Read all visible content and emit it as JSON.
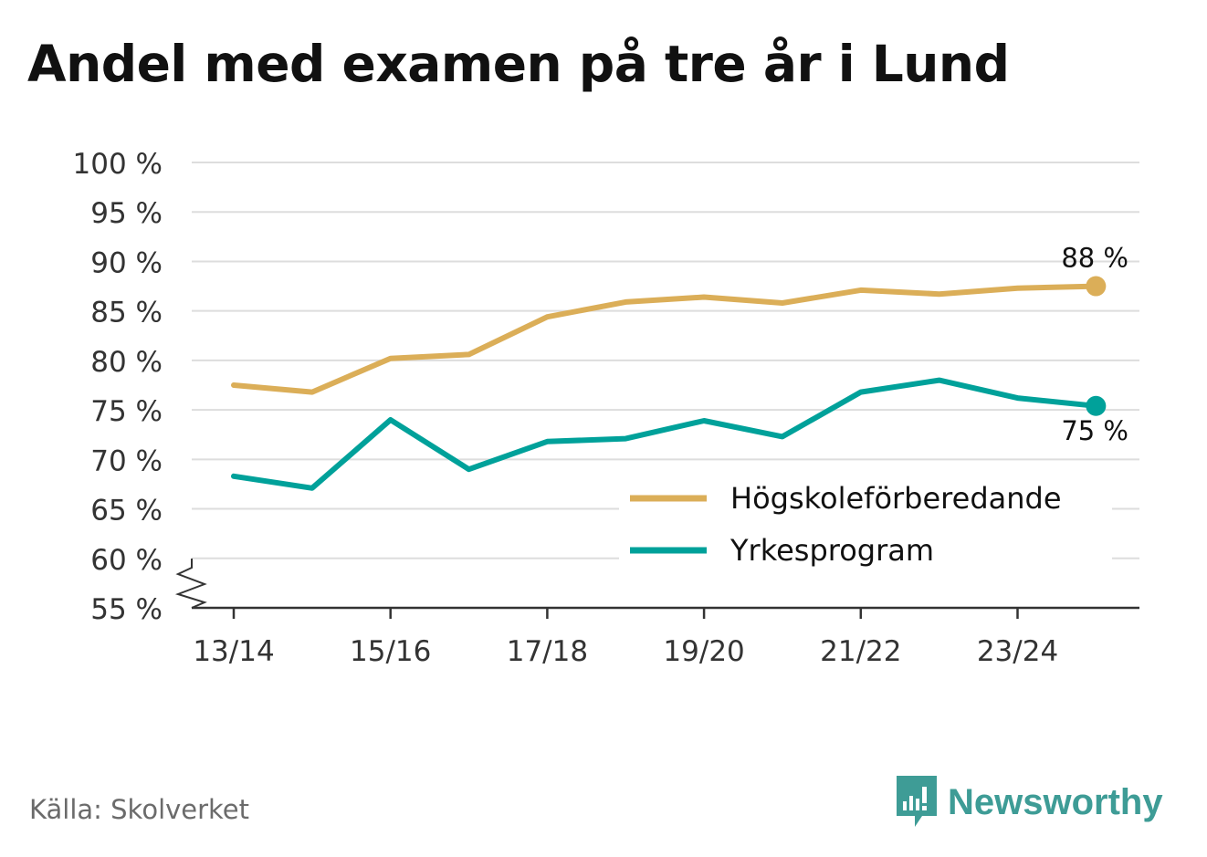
{
  "title": "Andel med examen på tre år i Lund",
  "source": "Källa: Skolverket",
  "brand": "Newsworthy",
  "colors": {
    "series1": "#DBAE58",
    "series2": "#00A19A",
    "grid": "#DDDDDD",
    "axis": "#333333",
    "brand": "#3E9C96"
  },
  "chart_data": {
    "type": "line",
    "title": "Andel med examen på tre år i Lund",
    "xlabel": "",
    "ylabel": "",
    "x": [
      "13/14",
      "14/15",
      "15/16",
      "16/17",
      "17/18",
      "18/19",
      "19/20",
      "20/21",
      "21/22",
      "22/23",
      "23/24",
      "24/25"
    ],
    "xtick_labels": [
      "13/14",
      "15/16",
      "17/18",
      "19/20",
      "21/22",
      "23/24"
    ],
    "ylim": [
      55,
      100
    ],
    "yticks": [
      55,
      60,
      65,
      70,
      75,
      80,
      85,
      90,
      95,
      100
    ],
    "ytick_labels": [
      "55 %",
      "60 %",
      "65 %",
      "70 %",
      "75 %",
      "80 %",
      "85 %",
      "90 %",
      "95 %",
      "100 %"
    ],
    "axis_break": true,
    "legend_position": "lower-right",
    "series": [
      {
        "name": "Högskoleförberedande",
        "values": [
          77.5,
          76.8,
          80.2,
          80.6,
          84.4,
          85.9,
          86.4,
          85.8,
          87.1,
          86.7,
          87.3,
          87.5
        ],
        "end_label": "88 %"
      },
      {
        "name": "Yrkesprogram",
        "values": [
          68.3,
          67.1,
          74.0,
          69.0,
          71.8,
          72.1,
          73.9,
          72.3,
          76.8,
          78.0,
          76.2,
          75.4
        ],
        "end_label": "75 %"
      }
    ]
  }
}
